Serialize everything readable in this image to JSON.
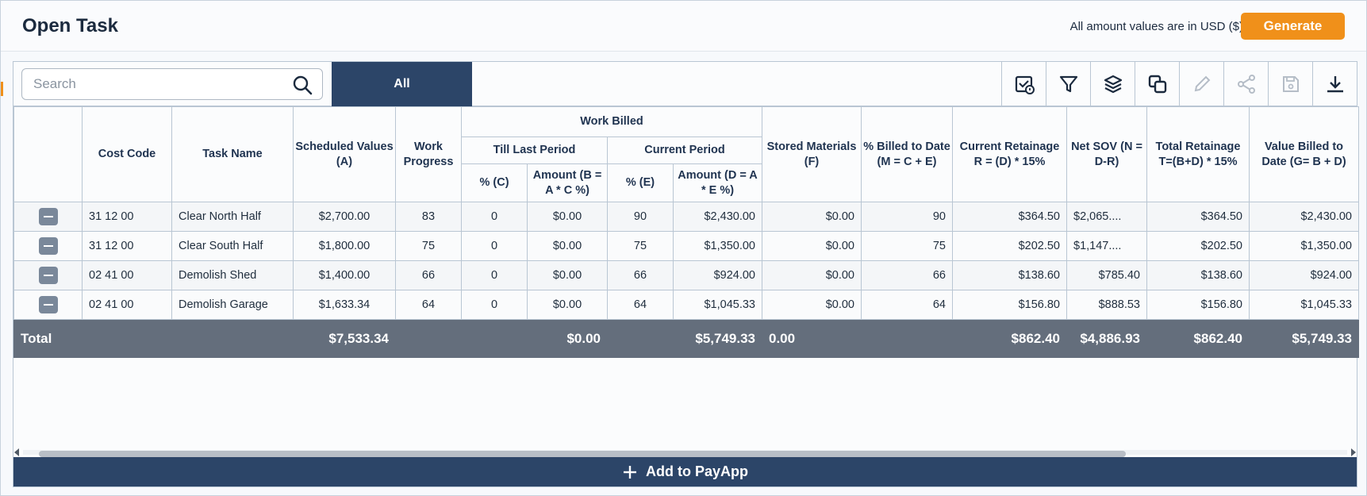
{
  "header": {
    "title": "Open Task",
    "usd_note": "All amount values are in USD ($)",
    "generate_label": "Generate"
  },
  "toolbar": {
    "search_placeholder": "Search",
    "tab_all": "All",
    "icons": [
      "calendar-check-icon",
      "filter-icon",
      "layers-icon",
      "copy-icon",
      "edit-icon",
      "share-icon",
      "save-icon",
      "download-icon"
    ]
  },
  "table": {
    "headers": {
      "cost_code": "Cost Code",
      "task_name": "Task Name",
      "scheduled_values": "Scheduled Values (A)",
      "work_progress": "Work Progress",
      "work_billed": "Work Billed",
      "till_last_period": "Till Last Period",
      "current_period": "Current Period",
      "tlp_pct": "% (C)",
      "tlp_amount": "Amount (B = A * C %)",
      "cp_pct": "% (E)",
      "cp_amount": "Amount (D = A * E %)",
      "stored_materials": "Stored Materials (F)",
      "billed_to_date": "% Billed to Date (M = C + E)",
      "current_retainage": "Current Retainage R = (D) * 15%",
      "net_sov": "Net SOV (N = D-R)",
      "total_retainage": "Total Retainage T=(B+D) * 15%",
      "value_billed": "Value Billed to Date (G= B + D)"
    },
    "rows": [
      {
        "cost_code": "31 12 00",
        "task_name": "Clear North Half",
        "scheduled": "$2,700.00",
        "progress": "83",
        "tlp_pct": "0",
        "tlp_amount": "$0.00",
        "cp_pct": "90",
        "cp_amount": "$2,430.00",
        "stored": "$0.00",
        "billed_pct": "90",
        "cur_ret": "$364.50",
        "net_sov": "$2,065....",
        "tot_ret": "$364.50",
        "value_billed": "$2,430.00"
      },
      {
        "cost_code": "31 12 00",
        "task_name": "Clear South Half",
        "scheduled": "$1,800.00",
        "progress": "75",
        "tlp_pct": "0",
        "tlp_amount": "$0.00",
        "cp_pct": "75",
        "cp_amount": "$1,350.00",
        "stored": "$0.00",
        "billed_pct": "75",
        "cur_ret": "$202.50",
        "net_sov": "$1,147....",
        "tot_ret": "$202.50",
        "value_billed": "$1,350.00"
      },
      {
        "cost_code": "02 41 00",
        "task_name": "Demolish Shed",
        "scheduled": "$1,400.00",
        "progress": "66",
        "tlp_pct": "0",
        "tlp_amount": "$0.00",
        "cp_pct": "66",
        "cp_amount": "$924.00",
        "stored": "$0.00",
        "billed_pct": "66",
        "cur_ret": "$138.60",
        "net_sov": "$785.40",
        "tot_ret": "$138.60",
        "value_billed": "$924.00"
      },
      {
        "cost_code": "02 41 00",
        "task_name": "Demolish Garage",
        "scheduled": "$1,633.34",
        "progress": "64",
        "tlp_pct": "0",
        "tlp_amount": "$0.00",
        "cp_pct": "64",
        "cp_amount": "$1,045.33",
        "stored": "$0.00",
        "billed_pct": "64",
        "cur_ret": "$156.80",
        "net_sov": "$888.53",
        "tot_ret": "$156.80",
        "value_billed": "$1,045.33"
      }
    ],
    "total": {
      "label": "Total",
      "scheduled": "$7,533.34",
      "tlp_amount": "$0.00",
      "cp_amount": "$5,749.33",
      "stored": "0.00",
      "cur_ret": "$862.40",
      "net_sov": "$4,886.93",
      "tot_ret": "$862.40",
      "value_billed": "$5,749.33"
    }
  },
  "footer": {
    "add_payapp_label": "Add to PayApp"
  },
  "colors": {
    "accent_orange": "#f0901a",
    "navy": "#2c4568",
    "total_row": "#646e7c"
  }
}
